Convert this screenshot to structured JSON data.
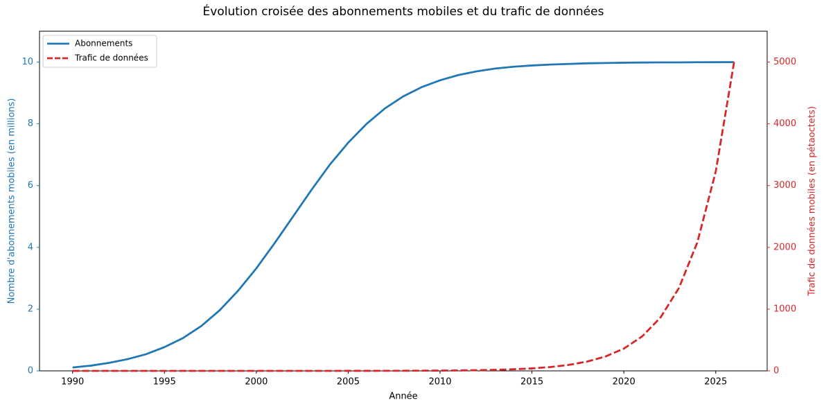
{
  "chart_data": {
    "type": "line",
    "title": "Évolution croisée des abonnements mobiles et du trafic de données",
    "x_label": "Année",
    "y_label": "Nombre d'abonnements mobiles (en millions)",
    "y2_label": "Trafic de données mobiles (en pétaoctets)",
    "x": [
      1990,
      1991,
      1992,
      1993,
      1994,
      1995,
      1996,
      1997,
      1998,
      1999,
      2000,
      2001,
      2002,
      2003,
      2004,
      2005,
      2006,
      2007,
      2008,
      2009,
      2010,
      2011,
      2012,
      2013,
      2014,
      2015,
      2016,
      2017,
      2018,
      2019,
      2020,
      2021,
      2022,
      2023,
      2024,
      2025,
      2026
    ],
    "series": [
      {
        "name": "Abonnements",
        "color": "#1f77b4",
        "style": "solid",
        "axis": "y",
        "values": [
          0.11,
          0.17,
          0.26,
          0.38,
          0.54,
          0.77,
          1.06,
          1.45,
          1.96,
          2.59,
          3.32,
          4.14,
          5.0,
          5.86,
          6.68,
          7.39,
          8.0,
          8.5,
          8.89,
          9.19,
          9.41,
          9.58,
          9.7,
          9.79,
          9.85,
          9.89,
          9.92,
          9.94,
          9.96,
          9.97,
          9.98,
          9.985,
          9.99,
          9.99,
          9.995,
          9.997,
          9.998
        ]
      },
      {
        "name": "Trafic de données",
        "color": "#d62728",
        "style": "dashed",
        "axis": "y2",
        "values": [
          0,
          0,
          0,
          0,
          0,
          0,
          0,
          0,
          0,
          0,
          0,
          0,
          0.1,
          0.2,
          0.3,
          0.5,
          0.8,
          1.2,
          1.9,
          2.9,
          4.5,
          7,
          11,
          17,
          26,
          40,
          62,
          97,
          150,
          233,
          360,
          559,
          866,
          1343,
          2081,
          3226,
          5000
        ]
      }
    ],
    "xlim": [
      1988.2,
      2027.8
    ],
    "xticks": [
      1990,
      1995,
      2000,
      2005,
      2010,
      2015,
      2020,
      2025
    ],
    "ylim": [
      0,
      11
    ],
    "yticks": [
      0,
      2,
      4,
      6,
      8,
      10
    ],
    "y2lim": [
      0,
      5500
    ],
    "y2ticks": [
      0,
      1000,
      2000,
      3000,
      4000,
      5000
    ],
    "legend": "upper left",
    "grid": false
  }
}
